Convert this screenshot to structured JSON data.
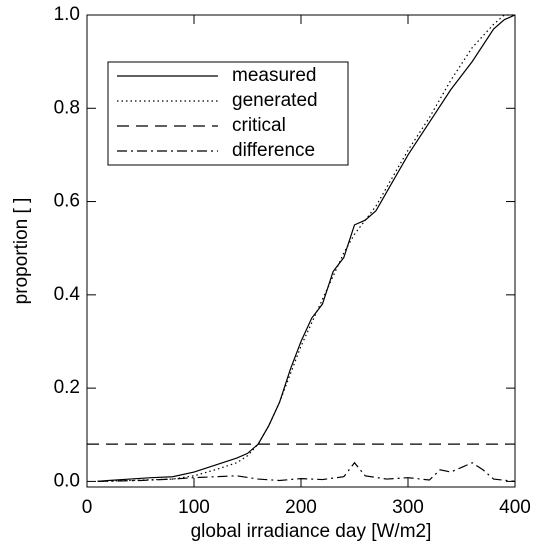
{
  "chart_data": {
    "type": "line",
    "x_label": "global irradiance day [W/m2]",
    "y_label": "proportion [ ]",
    "xlim": [
      0,
      400
    ],
    "ylim": [
      -0.012,
      1.0
    ],
    "xticks": [
      0,
      100,
      200,
      300,
      400
    ],
    "yticks": [
      {
        "value": 0,
        "label": "0.0"
      },
      0.2,
      0.4,
      0.6,
      0.8,
      {
        "value": 1,
        "label": "1.0"
      }
    ],
    "legend": "upper left",
    "series": [
      {
        "name": "measured",
        "color": "#000000",
        "linestyle": "solid",
        "x": [
          10,
          20,
          40,
          60,
          80,
          100,
          120,
          140,
          150,
          160,
          170,
          180,
          190,
          200,
          210,
          220,
          230,
          240,
          250,
          260,
          270,
          280,
          290,
          300,
          320,
          340,
          360,
          380,
          390,
          400
        ],
        "values": [
          0,
          0.002,
          0.005,
          0.008,
          0.01,
          0.02,
          0.035,
          0.05,
          0.06,
          0.08,
          0.12,
          0.17,
          0.24,
          0.3,
          0.35,
          0.38,
          0.45,
          0.48,
          0.55,
          0.56,
          0.58,
          0.62,
          0.66,
          0.7,
          0.77,
          0.84,
          0.9,
          0.97,
          0.99,
          1.0
        ]
      },
      {
        "name": "generated",
        "color": "#000000",
        "linestyle": "dotted",
        "x": [
          10,
          40,
          80,
          100,
          120,
          140,
          150,
          160,
          170,
          180,
          190,
          200,
          210,
          220,
          230,
          240,
          250,
          260,
          270,
          280,
          290,
          300,
          320,
          340,
          360,
          380,
          390,
          400
        ],
        "values": [
          0,
          0.002,
          0.005,
          0.012,
          0.025,
          0.04,
          0.055,
          0.08,
          0.12,
          0.17,
          0.23,
          0.29,
          0.34,
          0.39,
          0.44,
          0.49,
          0.53,
          0.56,
          0.59,
          0.63,
          0.67,
          0.71,
          0.78,
          0.86,
          0.93,
          0.98,
          1.0,
          1.0
        ]
      },
      {
        "name": "critical",
        "color": "#000000",
        "linestyle": "dashed",
        "x": [
          0,
          400
        ],
        "values": [
          0.08,
          0.08
        ]
      },
      {
        "name": "difference",
        "color": "#000000",
        "linestyle": "dashdot",
        "x": [
          10,
          50,
          80,
          100,
          120,
          140,
          160,
          180,
          200,
          220,
          240,
          250,
          260,
          280,
          300,
          320,
          330,
          340,
          350,
          360,
          370,
          380,
          400
        ],
        "values": [
          0,
          0.002,
          0.005,
          0.008,
          0.01,
          0.012,
          0.005,
          0.002,
          0.006,
          0.004,
          0.01,
          0.04,
          0.012,
          0.005,
          0.008,
          0.003,
          0.025,
          0.02,
          0.03,
          0.04,
          0.025,
          0.005,
          0
        ]
      }
    ]
  }
}
